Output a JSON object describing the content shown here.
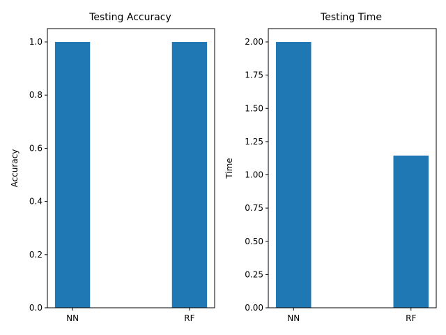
{
  "chart_data": [
    {
      "type": "bar",
      "title": "Testing Accuracy",
      "xlabel": "",
      "ylabel": "Accuracy",
      "categories": [
        "NN",
        "RF"
      ],
      "values": [
        1.0,
        1.0
      ],
      "ylim": [
        0,
        1.05
      ],
      "yticks": [
        "0.0",
        "0.2",
        "0.4",
        "0.6",
        "0.8",
        "1.0"
      ],
      "grid": false,
      "bar_color": "#1f77b4"
    },
    {
      "type": "bar",
      "title": "Testing Time",
      "xlabel": "",
      "ylabel": "Time",
      "categories": [
        "NN",
        "RF"
      ],
      "values": [
        2.0,
        1.145
      ],
      "ylim": [
        0,
        2.1
      ],
      "yticks": [
        "0.00",
        "0.25",
        "0.50",
        "0.75",
        "1.00",
        "1.25",
        "1.50",
        "1.75",
        "2.00"
      ],
      "grid": false,
      "bar_color": "#1f77b4"
    }
  ]
}
